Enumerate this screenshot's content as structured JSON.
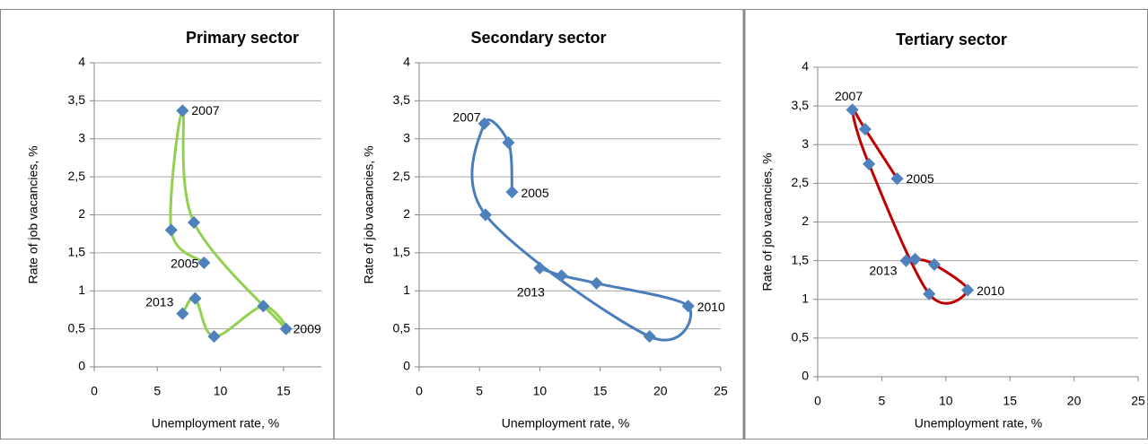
{
  "chart_data": [
    {
      "type": "scatter",
      "title": "Primary sector",
      "x_label": "Unemployment rate, %",
      "y_label": "Rate of job vacancies, %",
      "xlim": [
        0,
        18
      ],
      "ylim": [
        0,
        4
      ],
      "xticks": [
        0,
        5,
        10,
        15
      ],
      "yticks": [
        0,
        {
          "value": 0.5,
          "label": "0,5"
        },
        1,
        {
          "value": 1.5,
          "label": "1,5"
        },
        2,
        {
          "value": 2.5,
          "label": "2,5"
        },
        3,
        {
          "value": 3.5,
          "label": "3,5"
        },
        4
      ],
      "series": [
        {
          "color": "#92d050",
          "marker_color": "#4f81bd",
          "x": [
            8.7,
            6.1,
            7.0,
            7.9,
            15.2,
            13.4,
            9.5,
            8.0,
            7.0
          ],
          "values": [
            1.37,
            1.8,
            3.37,
            1.9,
            0.5,
            0.8,
            0.4,
            0.9,
            0.7
          ],
          "point_labels": [
            "2005",
            null,
            "2007",
            null,
            "2009",
            null,
            null,
            null,
            "2013"
          ]
        }
      ]
    },
    {
      "type": "scatter",
      "title": "Secondary sector",
      "x_label": "Unemployment rate, %",
      "y_label": "Rate of job vacancies, %",
      "xlim": [
        0,
        25
      ],
      "ylim": [
        0,
        4
      ],
      "xticks": [
        0,
        5,
        10,
        15,
        20,
        25
      ],
      "yticks": [
        0,
        {
          "value": 0.5,
          "label": "0,5"
        },
        1,
        {
          "value": 1.5,
          "label": "1,5"
        },
        2,
        {
          "value": 2.5,
          "label": "2,5"
        },
        3,
        {
          "value": 3.5,
          "label": "3,5"
        },
        4
      ],
      "series": [
        {
          "color": "#4a7ebb",
          "marker_color": "#4f81bd",
          "x": [
            7.7,
            7.4,
            5.4,
            5.5,
            19.1,
            22.3,
            14.7,
            11.8,
            10.0
          ],
          "values": [
            2.3,
            2.95,
            3.2,
            2.0,
            0.4,
            0.8,
            1.1,
            1.2,
            1.3
          ],
          "point_labels": [
            "2005",
            null,
            "2007",
            null,
            null,
            "2010",
            null,
            null,
            "2013"
          ]
        }
      ]
    },
    {
      "type": "scatter",
      "title": "Tertiary sector",
      "x_label": "Unemployment rate, %",
      "y_label": "Rate of job vacancies, %",
      "xlim": [
        0,
        25
      ],
      "ylim": [
        0,
        4
      ],
      "xticks": [
        0,
        5,
        10,
        15,
        20,
        25
      ],
      "yticks": [
        0,
        {
          "value": 0.5,
          "label": "0,5"
        },
        1,
        {
          "value": 1.5,
          "label": "1,5"
        },
        2,
        {
          "value": 2.5,
          "label": "2,5"
        },
        3,
        {
          "value": 3.5,
          "label": "3,5"
        },
        4
      ],
      "series": [
        {
          "color": "#c00000",
          "marker_color": "#4f81bd",
          "x": [
            6.2,
            3.7,
            2.7,
            4.0,
            8.7,
            11.7,
            9.1,
            7.6,
            6.9
          ],
          "values": [
            2.56,
            3.2,
            3.45,
            2.75,
            1.07,
            1.12,
            1.45,
            1.52,
            1.5
          ],
          "point_labels": [
            "2005",
            null,
            "2007",
            null,
            null,
            "2010",
            null,
            null,
            "2013"
          ]
        }
      ]
    }
  ]
}
